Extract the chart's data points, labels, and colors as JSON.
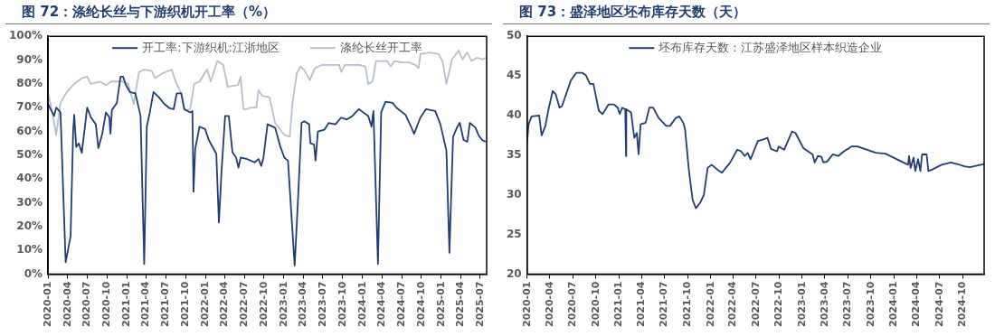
{
  "chart_data": [
    {
      "type": "line",
      "title": "图 72：涤纶长丝与下游织机开工率（%）",
      "legend": "top",
      "marker": "none",
      "xlim": [
        "2020-01-01",
        "2025-07-31"
      ],
      "xticks": [
        "2020-01",
        "2020-04",
        "2020-07",
        "2020-10",
        "2021-01",
        "2021-04",
        "2021-07",
        "2021-10",
        "2022-01",
        "2022-04",
        "2022-07",
        "2022-10",
        "2023-01",
        "2023-04",
        "2023-07",
        "2023-10",
        "2024-01",
        "2024-04",
        "2024-07",
        "2024-10",
        "2025-01",
        "2025-04",
        "2025-07"
      ],
      "ylim": [
        0,
        100
      ],
      "yticks": [
        {
          "value": 0,
          "label": "0%"
        },
        {
          "value": 10,
          "label": "10%"
        },
        {
          "value": 20,
          "label": "20%"
        },
        {
          "value": 30,
          "label": "30%"
        },
        {
          "value": 40,
          "label": "40%"
        },
        {
          "value": 50,
          "label": "50%"
        },
        {
          "value": 60,
          "label": "60%"
        },
        {
          "value": 70,
          "label": "70%"
        },
        {
          "value": 80,
          "label": "80%"
        },
        {
          "value": 90,
          "label": "90%"
        },
        {
          "value": 100,
          "label": "100%"
        }
      ],
      "series": [
        {
          "name": "开工率:下游织机:江浙地区",
          "color": "#1f3d73",
          "x": [
            "2020-01-01",
            "2020-01-29",
            "2020-02-08",
            "2020-02-28",
            "2020-03-23",
            "2020-04-15",
            "2020-04-27",
            "2020-05-02",
            "2020-05-11",
            "2020-05-23",
            "2020-06-06",
            "2020-07-01",
            "2020-07-18",
            "2020-08-10",
            "2020-08-22",
            "2020-09-09",
            "2020-09-26",
            "2020-10-12",
            "2020-10-17",
            "2020-10-24",
            "2020-11-16",
            "2020-12-03",
            "2020-12-15",
            "2020-12-28",
            "2021-01-15",
            "2021-02-10",
            "2021-03-06",
            "2021-03-23",
            "2021-04-04",
            "2021-04-18",
            "2021-05-05",
            "2021-05-30",
            "2021-06-25",
            "2021-07-20",
            "2021-08-07",
            "2021-08-21",
            "2021-09-11",
            "2021-09-25",
            "2021-10-23",
            "2021-11-02",
            "2021-11-07",
            "2021-11-15",
            "2021-12-05",
            "2021-12-31",
            "2022-01-17",
            "2022-02-21",
            "2022-03-05",
            "2022-03-17",
            "2022-04-03",
            "2022-04-20",
            "2022-05-07",
            "2022-05-24",
            "2022-06-04",
            "2022-06-14",
            "2022-07-14",
            "2022-08-18",
            "2022-09-05",
            "2022-09-18",
            "2022-09-28",
            "2022-10-17",
            "2022-11-21",
            "2022-12-16",
            "2023-01-03",
            "2023-01-20",
            "2023-02-20",
            "2023-03-10",
            "2023-03-24",
            "2023-04-06",
            "2023-04-28",
            "2023-05-04",
            "2023-05-21",
            "2023-05-28",
            "2023-06-08",
            "2023-07-08",
            "2023-07-28",
            "2023-08-28",
            "2023-09-24",
            "2023-10-20",
            "2023-11-15",
            "2023-12-15",
            "2023-12-27",
            "2024-01-28",
            "2024-02-12",
            "2024-02-21",
            "2024-03-13",
            "2024-03-28",
            "2024-04-17",
            "2024-05-20",
            "2024-06-07",
            "2024-07-19",
            "2024-08-14",
            "2024-08-28",
            "2024-09-26",
            "2024-10-22",
            "2024-12-04",
            "2024-12-28",
            "2025-01-25",
            "2025-02-08",
            "2025-02-25",
            "2025-03-15",
            "2025-03-28",
            "2025-04-15",
            "2025-05-02",
            "2025-05-14",
            "2025-06-09",
            "2025-06-23",
            "2025-07-10",
            "2025-07-26"
          ],
          "values": [
            71.5,
            66.5,
            70,
            68,
            5,
            16,
            60.7,
            67,
            53.5,
            55,
            51,
            70,
            66,
            63,
            53,
            59,
            68,
            66,
            59,
            69,
            72,
            83,
            83,
            79.5,
            76.6,
            76,
            66.5,
            4.3,
            62,
            68,
            76.6,
            74.4,
            71.5,
            69.7,
            69.4,
            76,
            76,
            69.4,
            68,
            68.6,
            34.7,
            52.7,
            62,
            61,
            56.4,
            50.6,
            21.7,
            43,
            66.5,
            66.5,
            51.3,
            49,
            44.8,
            49,
            48.4,
            47,
            48.4,
            45.5,
            49,
            63,
            61.6,
            53.5,
            49,
            47.7,
            3.6,
            36,
            63.6,
            64.3,
            63,
            55,
            54.5,
            47.7,
            60,
            60.7,
            63.6,
            63,
            65.8,
            65,
            66.5,
            69.4,
            68.6,
            66.5,
            62,
            68.6,
            4.3,
            68,
            72.5,
            72,
            70,
            67,
            62,
            59,
            65.8,
            69.4,
            68.6,
            63,
            52,
            9,
            57.8,
            61.6,
            63.6,
            56.4,
            55.7,
            63.6,
            61.6,
            58.5,
            56.4,
            55.7
          ]
        },
        {
          "name": "涤纶长丝开工率",
          "color": "#b4bfcf",
          "x": [
            "2020-01-01",
            "2020-01-21",
            "2020-02-08",
            "2020-02-28",
            "2020-03-28",
            "2020-05-02",
            "2020-06-06",
            "2020-07-01",
            "2020-07-18",
            "2020-08-30",
            "2020-09-26",
            "2020-10-21",
            "2020-12-12",
            "2021-01-07",
            "2021-02-02",
            "2021-02-27",
            "2021-03-23",
            "2021-04-26",
            "2021-05-13",
            "2021-06-17",
            "2021-07-29",
            "2021-08-16",
            "2021-09-11",
            "2021-09-28",
            "2021-10-23",
            "2021-11-10",
            "2021-12-05",
            "2022-01-09",
            "2022-01-26",
            "2022-02-26",
            "2022-03-25",
            "2022-04-15",
            "2022-06-02",
            "2022-06-14",
            "2022-06-27",
            "2022-07-11",
            "2022-08-01",
            "2022-08-26",
            "2022-09-05",
            "2022-09-22",
            "2022-10-26",
            "2022-11-21",
            "2023-01-03",
            "2023-01-28",
            "2023-02-10",
            "2023-03-02",
            "2023-03-19",
            "2023-04-06",
            "2023-05-01",
            "2023-05-26",
            "2023-06-28",
            "2023-09-15",
            "2023-09-24",
            "2023-10-11",
            "2023-12-18",
            "2024-01-14",
            "2024-01-28",
            "2024-02-17",
            "2024-03-04",
            "2024-04-25",
            "2024-05-11",
            "2024-05-28",
            "2024-07-02",
            "2024-08-06",
            "2024-09-01",
            "2024-09-18",
            "2024-09-26",
            "2024-11-08",
            "2024-12-20",
            "2025-01-07",
            "2025-01-25",
            "2025-02-20",
            "2025-03-23",
            "2025-04-10",
            "2025-05-02",
            "2025-05-22",
            "2025-06-17",
            "2025-07-13",
            "2025-07-26"
          ],
          "values": [
            76.6,
            68,
            58.5,
            72,
            76.6,
            80,
            82.4,
            83,
            80,
            80.9,
            79.5,
            81,
            81,
            80,
            71.5,
            85,
            86,
            85.5,
            82.4,
            84.5,
            86,
            80.9,
            76,
            68.6,
            69.4,
            80,
            81,
            86,
            81,
            89.6,
            88,
            78.8,
            79.5,
            83,
            69.4,
            69.4,
            70,
            70,
            77.3,
            75,
            74.4,
            63.6,
            58.5,
            57.8,
            72,
            84.5,
            87.3,
            85.8,
            81.6,
            86.7,
            88,
            88,
            85,
            88,
            88,
            87.3,
            80,
            81,
            89.6,
            89.6,
            87.3,
            89.6,
            89,
            89,
            88,
            86.7,
            92.5,
            93.2,
            92.5,
            89.6,
            80,
            90.3,
            94,
            90.3,
            93.2,
            89.6,
            91,
            90.3,
            91
          ]
        }
      ]
    },
    {
      "type": "line",
      "title": "图 73：盛泽地区坯布库存天数（天）",
      "legend": "top",
      "marker": "none",
      "xlim": [
        "2020-01-01",
        "2024-12-25"
      ],
      "xticks": [
        "2020-01",
        "2020-04",
        "2020-07",
        "2020-10",
        "2021-01",
        "2021-04",
        "2021-07",
        "2021-10",
        "2022-01",
        "2022-04",
        "2022-07",
        "2022-10",
        "2023-01",
        "2023-04",
        "2023-07",
        "2023-10",
        "2024-01",
        "2024-04",
        "2024-07",
        "2024-10"
      ],
      "ylim": [
        20,
        50
      ],
      "yticks": [
        20,
        25,
        30,
        35,
        40,
        45,
        50
      ],
      "series": [
        {
          "name": "坯布库存天数：江苏盛泽地区样本织造企业",
          "color": "#1f3d73",
          "x": [
            "2020-01-01",
            "2020-01-07",
            "2020-01-19",
            "2020-02-18",
            "2020-02-28",
            "2020-03-14",
            "2020-03-25",
            "2020-04-12",
            "2020-04-24",
            "2020-05-09",
            "2020-05-19",
            "2020-06-23",
            "2020-07-15",
            "2020-08-07",
            "2020-08-22",
            "2020-09-07",
            "2020-09-21",
            "2020-10-13",
            "2020-10-28",
            "2020-11-20",
            "2020-12-12",
            "2020-12-27",
            "2021-01-04",
            "2021-01-14",
            "2021-01-26",
            "2021-01-29",
            "2021-01-30",
            "2021-02-18",
            "2021-03-03",
            "2021-03-13",
            "2021-03-20",
            "2021-03-28",
            "2021-04-17",
            "2021-05-02",
            "2021-05-17",
            "2021-06-08",
            "2021-07-08",
            "2021-07-23",
            "2021-08-15",
            "2021-08-29",
            "2021-09-14",
            "2021-09-21",
            "2021-10-06",
            "2021-10-21",
            "2021-11-03",
            "2021-11-20",
            "2021-12-05",
            "2021-12-20",
            "2022-01-05",
            "2022-01-27",
            "2022-02-15",
            "2022-03-18",
            "2022-04-17",
            "2022-05-02",
            "2022-05-17",
            "2022-05-28",
            "2022-06-09",
            "2022-07-08",
            "2022-07-30",
            "2022-08-15",
            "2022-08-29",
            "2022-09-22",
            "2022-09-29",
            "2022-10-21",
            "2022-11-21",
            "2022-12-05",
            "2023-01-05",
            "2023-02-11",
            "2023-02-19",
            "2023-03-04",
            "2023-03-18",
            "2023-03-26",
            "2023-04-10",
            "2023-05-02",
            "2023-05-24",
            "2023-06-16",
            "2023-07-16",
            "2023-08-08",
            "2023-10-21",
            "2023-11-28",
            "2024-02-26",
            "2024-03-01",
            "2024-03-07",
            "2024-03-19",
            "2024-03-26",
            "2024-04-06",
            "2024-04-15",
            "2024-04-22",
            "2024-05-10",
            "2024-05-17",
            "2024-06-02",
            "2024-07-09",
            "2024-08-15",
            "2024-09-08",
            "2024-10-07",
            "2024-10-29",
            "2024-12-25"
          ],
          "values": [
            36.6,
            38.9,
            39.9,
            40,
            37.5,
            38.7,
            40.6,
            43.1,
            42.7,
            41,
            41.2,
            44.4,
            45.4,
            45.4,
            45.1,
            44,
            44,
            40.6,
            40.2,
            41.4,
            41.4,
            41,
            40.2,
            41,
            40.8,
            34.9,
            40.8,
            40.4,
            37.2,
            37.8,
            35.1,
            38.9,
            39.1,
            41,
            41,
            39.7,
            38.7,
            38.7,
            39.7,
            39.9,
            39.1,
            38.3,
            33.2,
            29.4,
            28.3,
            29,
            30,
            33.4,
            33.8,
            33.2,
            32.8,
            34,
            35.7,
            35.5,
            34.9,
            35.3,
            34.5,
            36.8,
            37,
            37.2,
            35.8,
            35.5,
            36.1,
            35.7,
            38,
            37.8,
            35.9,
            35.1,
            34.1,
            34.9,
            34.8,
            34.1,
            34.2,
            35.1,
            34.9,
            35.5,
            36.1,
            36.1,
            35.3,
            35.2,
            33.8,
            34.9,
            33.4,
            34.7,
            33,
            34.5,
            33,
            35.1,
            35.1,
            33,
            33.2,
            33.8,
            34.1,
            33.9,
            33.6,
            33.5,
            33.9
          ]
        }
      ]
    }
  ]
}
